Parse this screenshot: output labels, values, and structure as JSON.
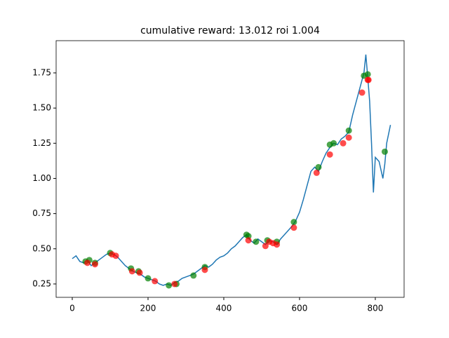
{
  "chart_data": {
    "type": "line",
    "title": "cumulative reward: 13.012 roi 1.004",
    "xlim": [
      -42.6,
      876
    ],
    "ylim": [
      0.155,
      1.979
    ],
    "xticks": [
      0,
      200,
      400,
      600,
      800
    ],
    "yticks": [
      0.25,
      {
        "value": 0.5,
        "label": "0.50"
      },
      0.75,
      {
        "value": 1.0,
        "label": "1.00"
      },
      1.25,
      {
        "value": 1.5,
        "label": "1.50"
      },
      1.75
    ],
    "series": [
      {
        "type": "line",
        "color": "#1f77b4",
        "x": [
          0,
          10,
          20,
          30,
          40,
          50,
          60,
          70,
          80,
          90,
          100,
          110,
          120,
          130,
          140,
          150,
          160,
          170,
          180,
          190,
          200,
          210,
          220,
          230,
          240,
          250,
          260,
          270,
          280,
          290,
          300,
          310,
          320,
          330,
          340,
          350,
          360,
          370,
          380,
          390,
          400,
          410,
          420,
          430,
          440,
          450,
          460,
          470,
          480,
          490,
          500,
          510,
          520,
          530,
          540,
          550,
          560,
          570,
          580,
          590,
          600,
          610,
          620,
          630,
          640,
          650,
          660,
          670,
          680,
          690,
          700,
          710,
          720,
          730,
          740,
          750,
          760,
          770,
          775,
          780,
          785,
          790,
          795,
          800,
          810,
          820,
          825,
          830,
          840
        ],
        "values": [
          0.43,
          0.45,
          0.41,
          0.4,
          0.42,
          0.38,
          0.4,
          0.42,
          0.44,
          0.46,
          0.47,
          0.46,
          0.44,
          0.41,
          0.38,
          0.36,
          0.34,
          0.33,
          0.32,
          0.3,
          0.29,
          0.28,
          0.27,
          0.25,
          0.24,
          0.25,
          0.24,
          0.26,
          0.27,
          0.29,
          0.3,
          0.31,
          0.32,
          0.34,
          0.36,
          0.38,
          0.37,
          0.39,
          0.42,
          0.44,
          0.45,
          0.47,
          0.5,
          0.52,
          0.55,
          0.58,
          0.6,
          0.56,
          0.54,
          0.57,
          0.55,
          0.53,
          0.56,
          0.55,
          0.53,
          0.57,
          0.6,
          0.63,
          0.66,
          0.7,
          0.76,
          0.85,
          0.95,
          1.05,
          1.08,
          1.05,
          1.12,
          1.18,
          1.22,
          1.25,
          1.24,
          1.28,
          1.3,
          1.33,
          1.45,
          1.55,
          1.65,
          1.75,
          1.88,
          1.72,
          1.55,
          1.25,
          0.9,
          1.15,
          1.12,
          1.0,
          1.1,
          1.25,
          1.38
        ]
      },
      {
        "type": "scatter",
        "color": "green",
        "x": [
          35,
          45,
          60,
          100,
          155,
          175,
          200,
          255,
          275,
          320,
          350,
          460,
          465,
          485,
          515,
          540,
          585,
          650,
          680,
          690,
          730,
          770,
          780,
          825
        ],
        "values": [
          0.41,
          0.42,
          0.4,
          0.47,
          0.36,
          0.34,
          0.29,
          0.24,
          0.25,
          0.31,
          0.37,
          0.6,
          0.59,
          0.55,
          0.56,
          0.55,
          0.69,
          1.08,
          1.24,
          1.25,
          1.34,
          1.73,
          1.74,
          1.19
        ]
      },
      {
        "type": "scatter",
        "color": "red",
        "x": [
          40,
          60,
          105,
          115,
          158,
          178,
          218,
          270,
          350,
          465,
          510,
          520,
          530,
          540,
          585,
          645,
          680,
          715,
          730,
          765,
          780,
          782
        ],
        "values": [
          0.4,
          0.39,
          0.46,
          0.45,
          0.34,
          0.33,
          0.27,
          0.25,
          0.35,
          0.56,
          0.52,
          0.55,
          0.54,
          0.53,
          0.65,
          1.04,
          1.17,
          1.25,
          1.29,
          1.61,
          1.7,
          1.7
        ]
      }
    ]
  }
}
